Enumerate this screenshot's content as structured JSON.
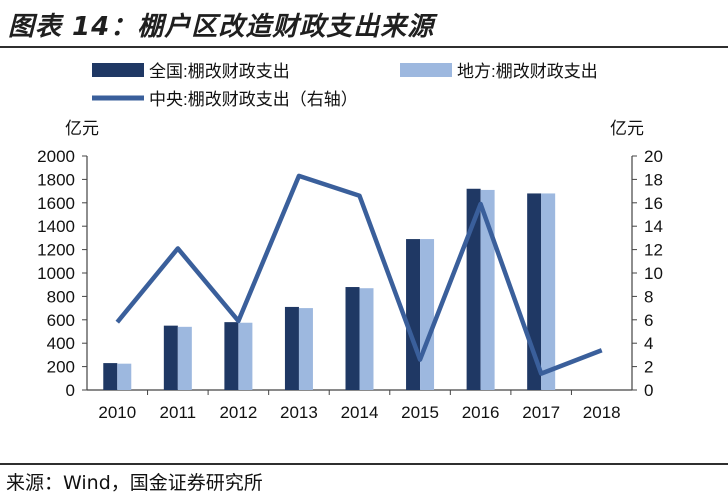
{
  "title": "图表 14：棚户区改造财政支出来源",
  "source": "来源：Wind，国金证券研究所",
  "chart_data": {
    "type": "bar",
    "categories": [
      "2010",
      "2011",
      "2012",
      "2013",
      "2014",
      "2015",
      "2016",
      "2017",
      "2018"
    ],
    "series": [
      {
        "name": "全国:棚改财政支出",
        "kind": "bar",
        "axis": "left",
        "color": "#1f3864",
        "values": [
          230,
          550,
          580,
          710,
          880,
          1290,
          1720,
          1680,
          null
        ]
      },
      {
        "name": "地方:棚改财政支出",
        "kind": "bar",
        "axis": "left",
        "color": "#9db8df",
        "values": [
          225,
          540,
          575,
          700,
          870,
          1290,
          1710,
          1680,
          null
        ]
      },
      {
        "name": "中央:棚改财政支出（右轴）",
        "kind": "line",
        "axis": "right",
        "color": "#3a5f9b",
        "values": [
          5.8,
          12.1,
          5.9,
          18.3,
          16.6,
          2.6,
          15.9,
          1.4,
          3.4
        ]
      }
    ],
    "y_left": {
      "label": "亿元",
      "min": 0,
      "max": 2000,
      "ticks": [
        0,
        200,
        400,
        600,
        800,
        1000,
        1200,
        1400,
        1600,
        1800,
        2000
      ]
    },
    "y_right": {
      "label": "亿元",
      "min": 0,
      "max": 20,
      "ticks": [
        0,
        2,
        4,
        6,
        8,
        10,
        12,
        14,
        16,
        18,
        20
      ]
    },
    "legend_position": "top",
    "grid": false
  }
}
